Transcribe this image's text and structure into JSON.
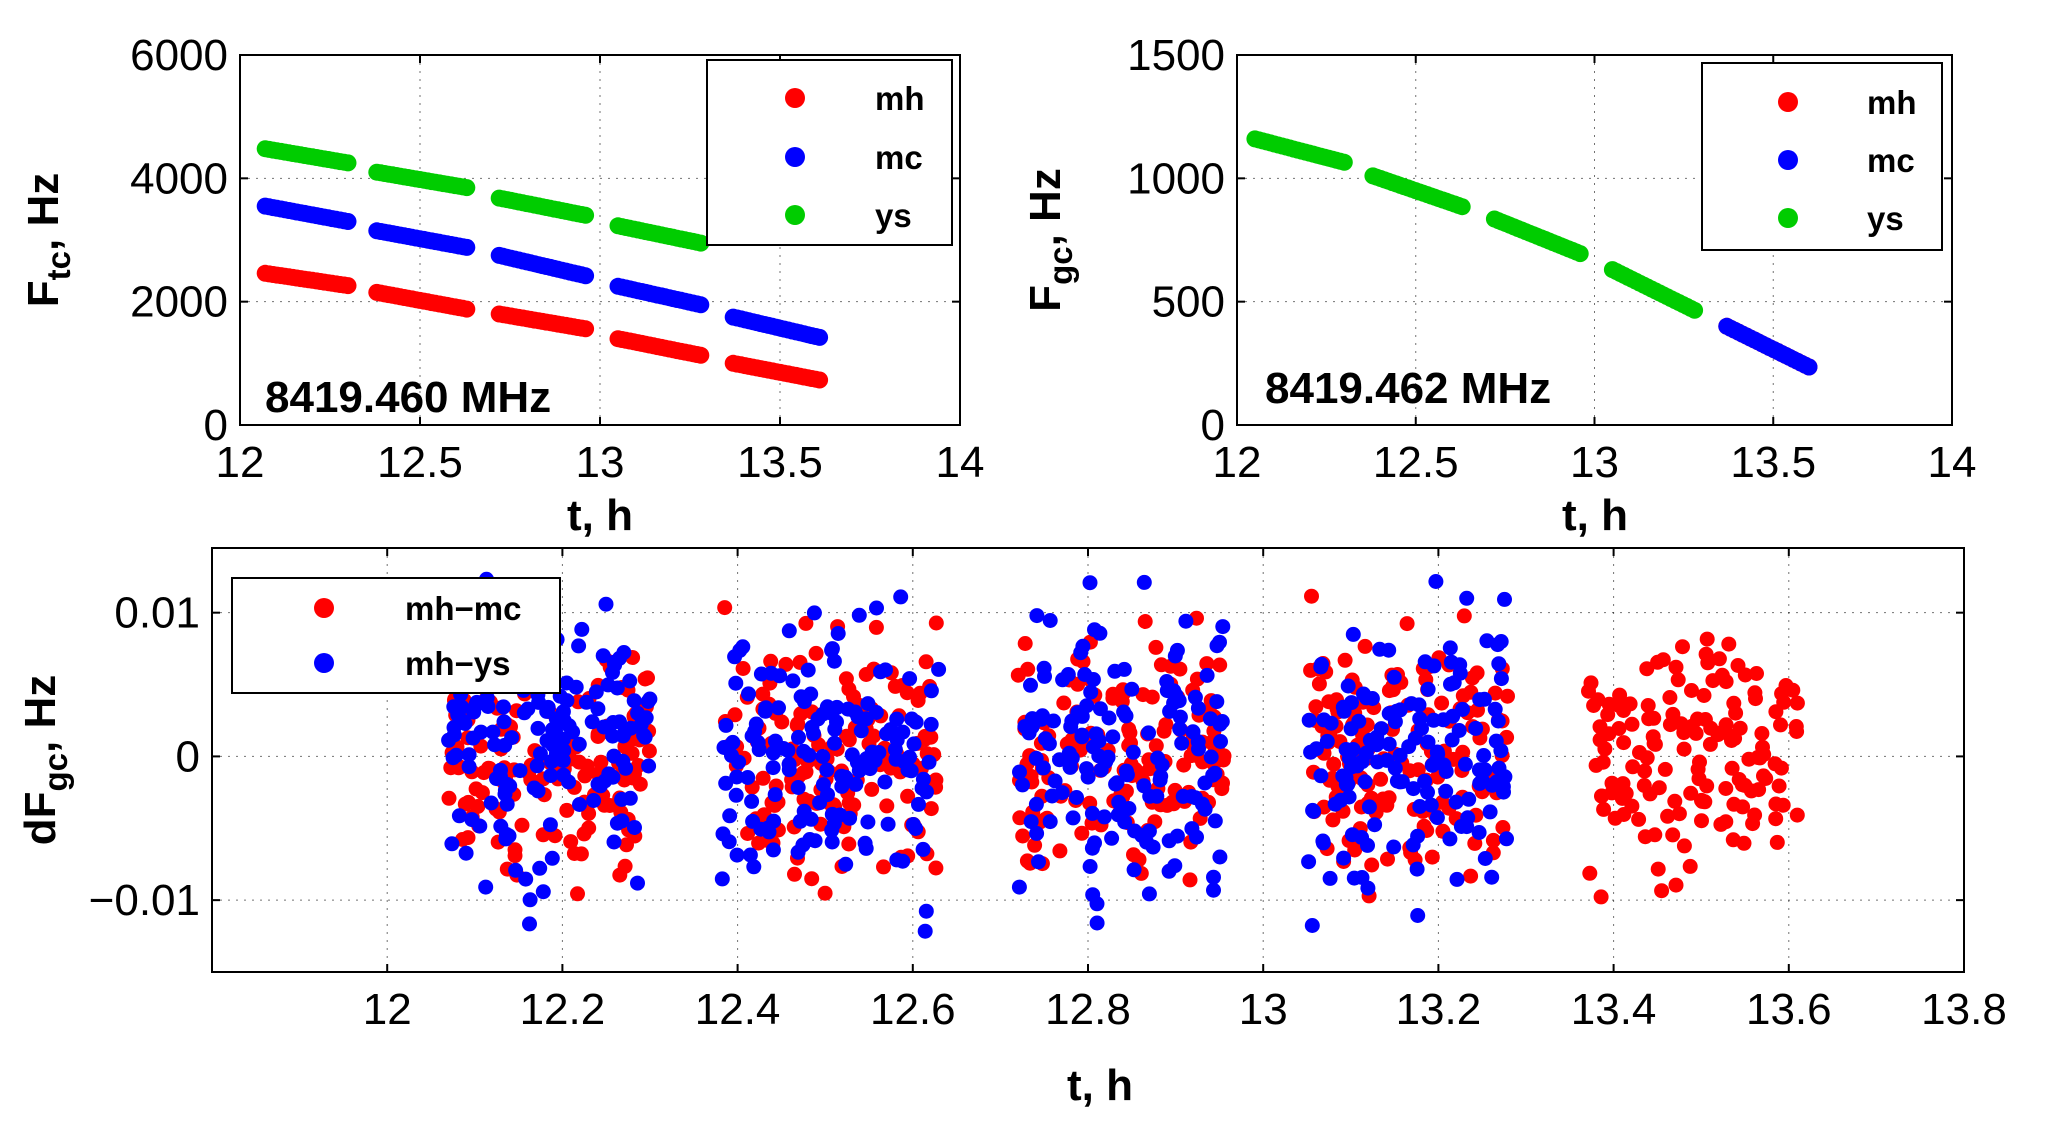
{
  "chart_data": [
    {
      "type": "scatter",
      "xlabel": "t, h",
      "ylabel": "F",
      "ylabel_sub": "tc",
      "ylabel_unit": ", Hz",
      "annotation": "8419.460 MHz",
      "xlim": [
        12,
        14
      ],
      "ylim": [
        0,
        6000
      ],
      "xticks": [
        "12",
        "12.5",
        "13",
        "13.5",
        "14"
      ],
      "yticks": [
        "0",
        "2000",
        "4000",
        "6000"
      ],
      "grid": true,
      "legend_position": "top-right",
      "colors": {
        "mh": "#ff0000",
        "mc": "#0000ff",
        "ys": "#00cc00"
      },
      "segments": [
        {
          "x": [
            12.07,
            12.3
          ]
        },
        {
          "x": [
            12.38,
            12.63
          ]
        },
        {
          "x": [
            12.72,
            12.96
          ]
        },
        {
          "x": [
            13.05,
            13.28
          ]
        },
        {
          "x": [
            13.37,
            13.61
          ]
        }
      ],
      "series": [
        {
          "name": "mh",
          "lines": [
            [
              12.07,
              2460,
              12.3,
              2260
            ],
            [
              12.38,
              2150,
              12.63,
              1880
            ],
            [
              12.72,
              1800,
              12.96,
              1560
            ],
            [
              13.05,
              1400,
              13.28,
              1130
            ],
            [
              13.37,
              1000,
              13.61,
              730
            ]
          ]
        },
        {
          "name": "mc",
          "lines": [
            [
              12.07,
              3550,
              12.3,
              3300
            ],
            [
              12.38,
              3150,
              12.63,
              2880
            ],
            [
              12.72,
              2750,
              12.96,
              2420
            ],
            [
              13.05,
              2250,
              13.28,
              1950
            ],
            [
              13.37,
              1750,
              13.61,
              1420
            ]
          ]
        },
        {
          "name": "ys",
          "lines": [
            [
              12.07,
              4480,
              12.3,
              4250
            ],
            [
              12.38,
              4100,
              12.63,
              3850
            ],
            [
              12.72,
              3680,
              12.96,
              3400
            ],
            [
              13.05,
              3230,
              13.28,
              2950
            ]
          ]
        }
      ]
    },
    {
      "type": "scatter",
      "xlabel": "t, h",
      "ylabel": "F",
      "ylabel_sub": "gc",
      "ylabel_unit": ", Hz",
      "annotation": "8419.462 MHz",
      "xlim": [
        12,
        14
      ],
      "ylim": [
        0,
        1500
      ],
      "xticks": [
        "12",
        "12.5",
        "13",
        "13.5",
        "14"
      ],
      "yticks": [
        "0",
        "500",
        "1000",
        "1500"
      ],
      "grid": true,
      "legend_position": "top-right",
      "colors": {
        "mh": "#ff0000",
        "mc": "#0000ff",
        "ys": "#00cc00"
      },
      "series": [
        {
          "name": "mh",
          "lines": [
            [
              13.37,
              400,
              13.6,
              235
            ]
          ]
        },
        {
          "name": "mc",
          "lines": [
            [
              13.37,
              400,
              13.6,
              235
            ]
          ]
        },
        {
          "name": "ys",
          "lines": [
            [
              12.05,
              1160,
              12.3,
              1065
            ],
            [
              12.38,
              1010,
              12.63,
              885
            ],
            [
              12.72,
              835,
              12.96,
              695
            ],
            [
              13.05,
              630,
              13.28,
              465
            ]
          ]
        }
      ]
    },
    {
      "type": "scatter",
      "xlabel": "t, h",
      "ylabel": "dF",
      "ylabel_sub": "gc",
      "ylabel_unit": ", Hz",
      "xlim": [
        11.8,
        13.8
      ],
      "ylim": [
        -0.015,
        0.0145
      ],
      "xticks": [
        "12",
        "12.2",
        "12.4",
        "12.6",
        "12.8",
        "13",
        "13.2",
        "13.4",
        "13.6",
        "13.8"
      ],
      "yticks": [
        "−0.01",
        "0",
        "0.01"
      ],
      "grid": true,
      "legend_position": "top-left",
      "colors": {
        "mh-mc": "#ff0000",
        "mh-ys": "#0000ff"
      },
      "series": [
        {
          "name": "mh−mc",
          "key": "mh-mc",
          "segments": [
            [
              12.07,
              12.3
            ],
            [
              12.38,
              12.63
            ],
            [
              12.72,
              12.96
            ],
            [
              13.05,
              13.28
            ],
            [
              13.37,
              13.61
            ]
          ],
          "spread": 0.012,
          "points_per_segment": 150
        },
        {
          "name": "mh−ys",
          "key": "mh-ys",
          "segments": [
            [
              12.07,
              12.3
            ],
            [
              12.38,
              12.63
            ],
            [
              12.72,
              12.96
            ],
            [
              13.05,
              13.28
            ]
          ],
          "spread": 0.014,
          "points_per_segment": 150
        }
      ]
    }
  ]
}
